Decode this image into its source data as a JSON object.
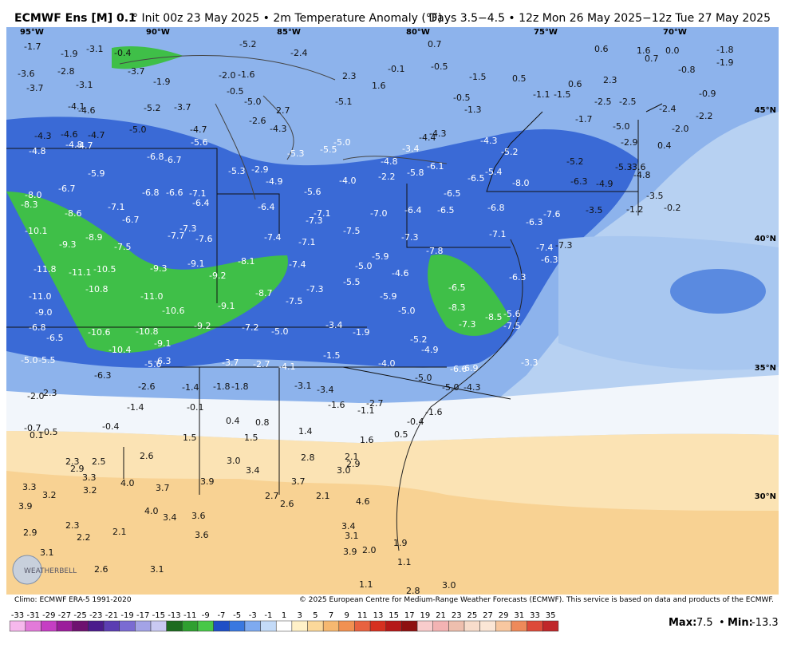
{
  "header": {
    "model": "ECMWF Ens [M] 0.1",
    "init": "° Init 00z 23 May 2025 • 2m Temperature Anomaly (°F)",
    "valid": "Days 3.5−4.5 • 12z Mon 26 May 2025−12z Tue 27 May 2025"
  },
  "map": {
    "lon_labels": [
      "95°W",
      "90°W",
      "85°W",
      "80°W",
      "75°W",
      "70°W"
    ],
    "lat_labels": [
      "45°N",
      "40°N",
      "35°N",
      "30°N"
    ],
    "logo": "WEATHERBELL",
    "station_values": [
      "-1.7",
      "-1.9",
      "-3.1",
      "-0.4",
      "-5.2",
      "-2.4",
      "0.7",
      "0.6",
      "1.6",
      "0.0",
      "0.7",
      "-1.8",
      "-1.9",
      "-3.6",
      "-2.8",
      "-3.7",
      "-2.0",
      "-1.6",
      "2.3",
      "-0.1",
      "-0.5",
      "-1.5",
      "0.5",
      "-0.8",
      "-3.7",
      "-3.1",
      "-1.9",
      "-0.5",
      "1.6",
      "0.6",
      "2.3",
      "-4.1",
      "-4.6",
      "-5.2",
      "-3.7",
      "-5.0",
      "2.7",
      "-5.1",
      "-0.5",
      "-1.3",
      "-1.1",
      "-1.5",
      "-2.5",
      "-2.5",
      "-2.4",
      "-0.9",
      "-2.2",
      "-2.6",
      "-4.3",
      "-4.3",
      "-4.6",
      "-4.7",
      "-5.0",
      "-4.7",
      "-5.6",
      "-4.3",
      "-4.4",
      "-1.7",
      "-5.0",
      "-2.9",
      "-2.0",
      "0.4",
      "-4.8",
      "-4.8",
      "-4.7",
      "-5.0",
      "-5.5",
      "-5.3",
      "-3.4",
      "-5.2",
      "-4.3",
      "-6.8",
      "-6.7",
      "-5.9",
      "-5.3",
      "-2.9",
      "-4.8",
      "-2.2",
      "-6.1",
      "-5.8",
      "-6.5",
      "-5.4",
      "-5.2",
      "-5.3",
      "-3.6",
      "-4.8",
      "-6.3",
      "-4.9",
      "-8.0",
      "-4.0",
      "-4.9",
      "-6.7",
      "-8.0",
      "-6.8",
      "-6.6",
      "-7.1",
      "-6.4",
      "-5.6",
      "-6.5",
      "-3.5",
      "-8.3",
      "-7.1",
      "-6.4",
      "-7.1",
      "-7.3",
      "-7.0",
      "-6.4",
      "-6.5",
      "-6.8",
      "-7.6",
      "-3.5",
      "-1.2",
      "-0.2",
      "-8.6",
      "-6.7",
      "-6.3",
      "-10.1",
      "-7.7",
      "-7.3",
      "-7.6",
      "-7.4",
      "-7.5",
      "-7.3",
      "-7.1",
      "-9.3",
      "-8.9",
      "-7.5",
      "-7.1",
      "-7.8",
      "-7.4",
      "-7.3",
      "-5.9",
      "-6.3",
      "-11.8",
      "-11.1",
      "-10.5",
      "-9.3",
      "-9.1",
      "-8.1",
      "-7.4",
      "-5.0",
      "-4.6",
      "-6.3",
      "-9.2",
      "-10.8",
      "-6.5",
      "-7.3",
      "-5.5",
      "-11.0",
      "-11.0",
      "-8.7",
      "-7.5",
      "-5.9",
      "-9.1",
      "-8.3",
      "-9.0",
      "-10.6",
      "-5.0",
      "-8.5",
      "-5.6",
      "-6.8",
      "-10.6",
      "-10.8",
      "-9.2",
      "-7.2",
      "-5.0",
      "-3.4",
      "-1.9",
      "-7.3",
      "-7.5",
      "-6.5",
      "-9.1",
      "-5.2",
      "-10.4",
      "-4.9",
      "-1.5",
      "-5.0",
      "-5.5",
      "-5.6",
      "-6.3",
      "-3.7",
      "-2.7",
      "-4.1",
      "-4.0",
      "-6.6",
      "-6.9",
      "-3.3",
      "-6.3",
      "-5.0",
      "-3.1",
      "-3.4",
      "-2.6",
      "-1.4",
      "-1.8",
      "-1.8",
      "-5.0",
      "-4.3",
      "-2.3",
      "-2.0",
      "-1.6",
      "-2.7",
      "-1.1",
      "-1.4",
      "-0.1",
      "-1.6",
      "0.4",
      "0.8",
      "-0.4",
      "-0.4",
      "-0.7",
      "-0.5",
      "0.1",
      "0.5",
      "1.4",
      "1.5",
      "1.5",
      "1.6",
      "2.6",
      "2.3",
      "2.5",
      "2.9",
      "3.0",
      "2.8",
      "2.1",
      "2.9",
      "3.0",
      "3.4",
      "3.3",
      "4.0",
      "3.7",
      "3.9",
      "3.7",
      "3.3",
      "3.2",
      "3.2",
      "2.7",
      "2.6",
      "2.1",
      "4.6",
      "3.9",
      "4.0",
      "3.4",
      "3.6",
      "2.9",
      "2.3",
      "2.2",
      "2.1",
      "3.6",
      "3.4",
      "3.1",
      "1.9",
      "3.1",
      "2.0",
      "3.9",
      "1.1",
      "2.6",
      "3.1",
      "1.1",
      "3.0",
      "2.8"
    ]
  },
  "footer": {
    "climo": "Climo: ECMWF ERA-5 1991-2020",
    "copyright": "© 2025 European Centre for Medium-Range Weather Forecasts (ECMWF). This service is based on data and products of the ECMWF."
  },
  "colorbar": {
    "ticks": [
      -33,
      -31,
      -29,
      -27,
      -25,
      -23,
      -21,
      -19,
      -17,
      -15,
      -13,
      -11,
      -9,
      -7,
      -5,
      -3,
      -1,
      1,
      3,
      5,
      7,
      9,
      11,
      13,
      15,
      17,
      19,
      21,
      23,
      25,
      27,
      29,
      31,
      33,
      35
    ],
    "colors": [
      "#f6b8ec",
      "#e27ad9",
      "#c53ec3",
      "#9b1d9b",
      "#6e1270",
      "#4b1b8c",
      "#5b3db2",
      "#7a6bd2",
      "#a3a3e6",
      "#c9c9f2",
      "#1d6b1f",
      "#2f9f30",
      "#48c848",
      "#1f4fc6",
      "#3a78e0",
      "#7eaaf0",
      "#c4dbf8",
      "#ffffff",
      "#fff1c8",
      "#fbd89a",
      "#f6b870",
      "#f19152",
      "#e86240",
      "#d63020",
      "#b51818",
      "#8e1010",
      "#f9cccc",
      "#f3b3b3",
      "#eebfae",
      "#f7dccb",
      "#fbe6d6",
      "#f8c7a0",
      "#ee8a5a",
      "#dd4a3a",
      "#c0262a"
    ]
  },
  "stats": {
    "max_label": "Max:",
    "max": 7.5,
    "separator": "•",
    "min_label": "Min:",
    "min": -13.3
  }
}
